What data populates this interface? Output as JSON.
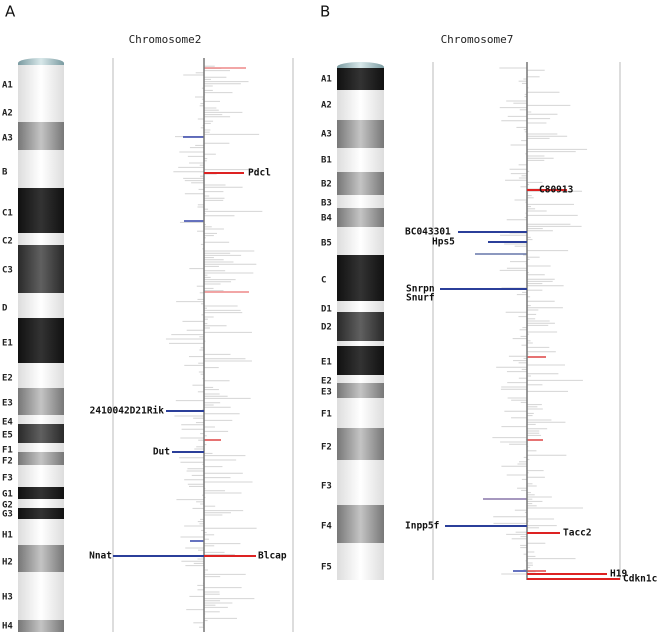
{
  "panels": [
    {
      "label": "A",
      "title": "Chromosome2",
      "bands": [
        "A1",
        "A2",
        "A3",
        "B",
        "C1",
        "C2",
        "C3",
        "D",
        "E1",
        "E2",
        "E3",
        "E4",
        "E5",
        "F1",
        "F2",
        "F3",
        "G1",
        "G2",
        "G3",
        "H1",
        "H2",
        "H3",
        "H4"
      ],
      "genes": [
        "Pdcl",
        "2410042D21Rik",
        "Dut",
        "Nnat",
        "Blcap"
      ]
    },
    {
      "label": "B",
      "title": "Chromosome7",
      "bands": [
        "A1",
        "A2",
        "A3",
        "B1",
        "B2",
        "B3",
        "B4",
        "B5",
        "C",
        "D1",
        "D2",
        "E1",
        "E2",
        "E3",
        "F1",
        "F2",
        "F3",
        "F4",
        "F5"
      ],
      "genes": [
        "C80913",
        "BC043301",
        "Hps5",
        "Snrpn",
        "Snurf",
        "Inpp5f",
        "Tacc2",
        "H19",
        "Cdkn1c"
      ]
    }
  ]
}
